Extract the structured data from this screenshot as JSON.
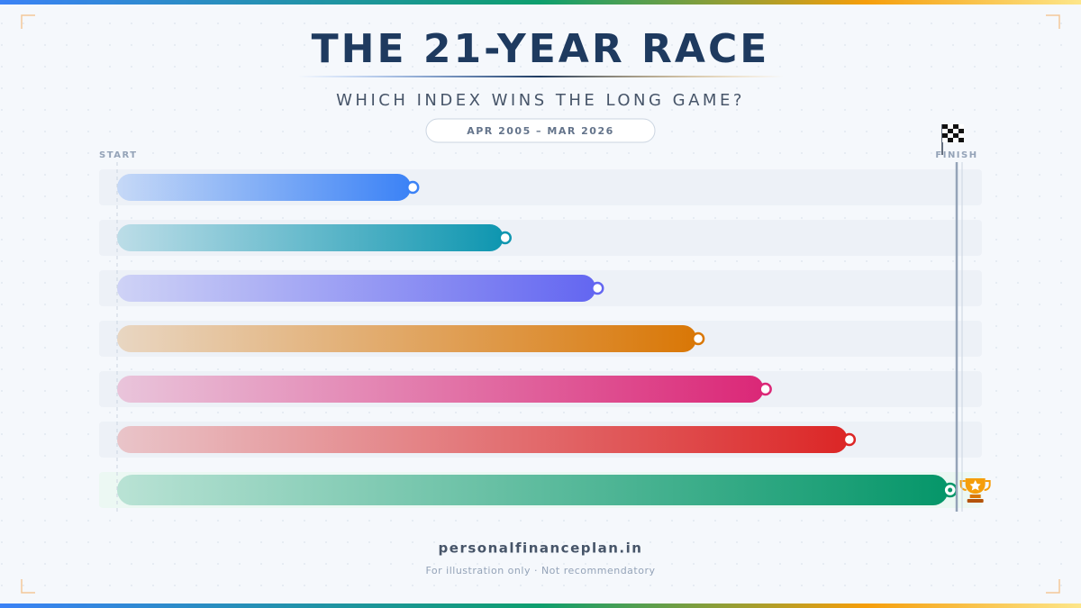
{
  "chart_data": {
    "type": "bar",
    "orientation": "horizontal",
    "title": "THE 21-YEAR RACE",
    "subtitle": "WHICH INDEX WINS THE LONG GAME?",
    "period": "APR 2005 – MAR 2026",
    "start_label": "START",
    "finish_label": "FINISH",
    "xlim": [
      0,
      100
    ],
    "values": [
      35,
      46,
      57,
      69,
      77,
      87,
      99
    ],
    "colors": [
      "#3b82f6",
      "#0e96b0",
      "#6366f1",
      "#d97706",
      "#db2777",
      "#dc2626",
      "#059669"
    ]
  },
  "footer": {
    "site": "personalfinanceplan.in",
    "note": "For illustration only · Not recommendatory"
  }
}
